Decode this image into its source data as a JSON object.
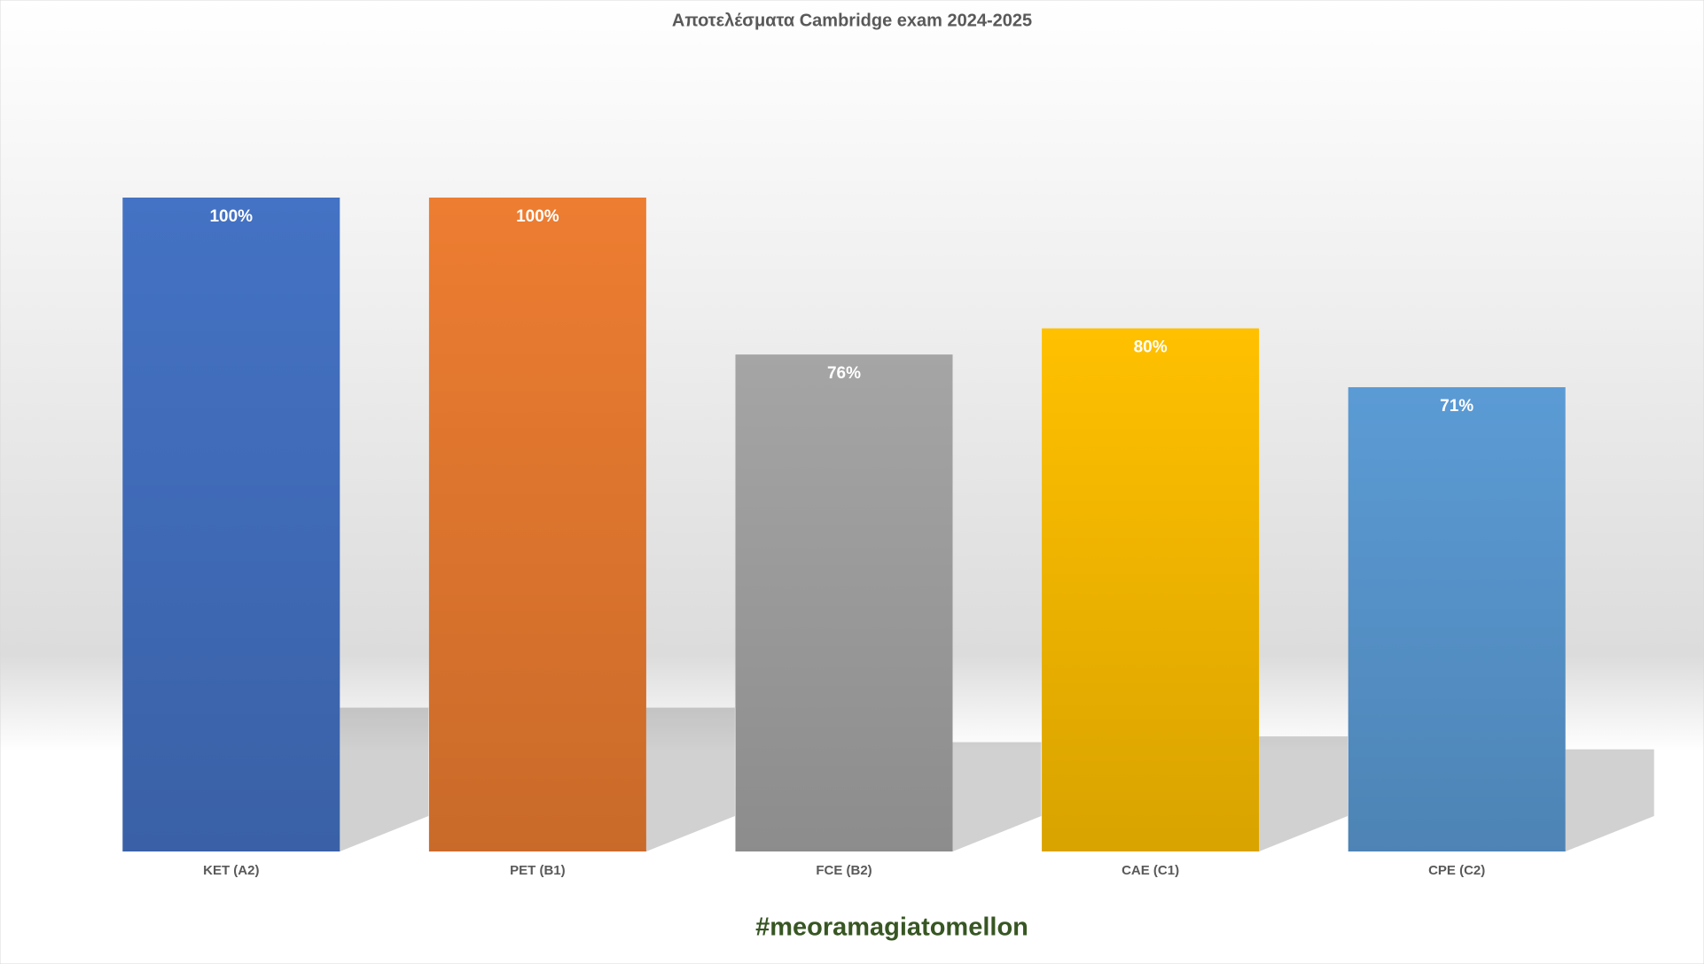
{
  "chart_data": {
    "type": "bar",
    "title": "Αποτελέσματα Cambridge exam 2024-2025",
    "categories": [
      "KET (A2)",
      "PET (B1)",
      "FCE (B2)",
      "CAE (C1)",
      "CPE (C2)"
    ],
    "values": [
      100,
      100,
      76,
      80,
      71
    ],
    "value_labels": [
      "100%",
      "100%",
      "76%",
      "80%",
      "71%"
    ],
    "colors": [
      "#4472c4",
      "#ed7d31",
      "#a5a5a5",
      "#ffc000",
      "#5b9bd5"
    ],
    "ylim": [
      0,
      100
    ],
    "footer": "#meoramagiatomellon"
  }
}
